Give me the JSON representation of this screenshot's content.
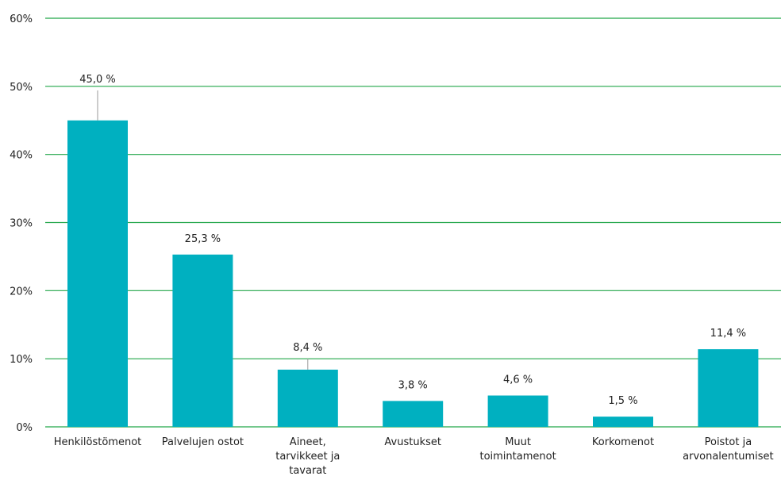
{
  "chart_data": {
    "type": "bar",
    "title": "",
    "xlabel": "",
    "ylabel": "",
    "categories": [
      [
        "Henkilöstömenot"
      ],
      [
        "Palvelujen ostot"
      ],
      [
        "Aineet,",
        "tarvikkeet ja",
        "tavarat"
      ],
      [
        "Avustukset"
      ],
      [
        "Muut",
        "toimintamenot"
      ],
      [
        "Korkomenot"
      ],
      [
        "Poistot ja",
        "arvonalentumiset"
      ]
    ],
    "values": [
      45.0,
      25.3,
      8.4,
      3.8,
      4.6,
      1.5,
      11.4
    ],
    "data_labels": [
      "45,0 %",
      "25,3 %",
      "8,4 %",
      "3,8 %",
      "4,6 %",
      "1,5 %",
      "11,4 %"
    ],
    "ylim": [
      0,
      60
    ],
    "yticks": [
      0,
      10,
      20,
      30,
      40,
      50,
      60
    ],
    "ytick_labels": [
      "0%",
      "10%",
      "20%",
      "30%",
      "40%",
      "50%",
      "60%"
    ],
    "grid": true,
    "legend": "none",
    "colors": {
      "bar": "#00b0c0",
      "grid": "#21a649",
      "leader": "#9a9a9a"
    }
  }
}
